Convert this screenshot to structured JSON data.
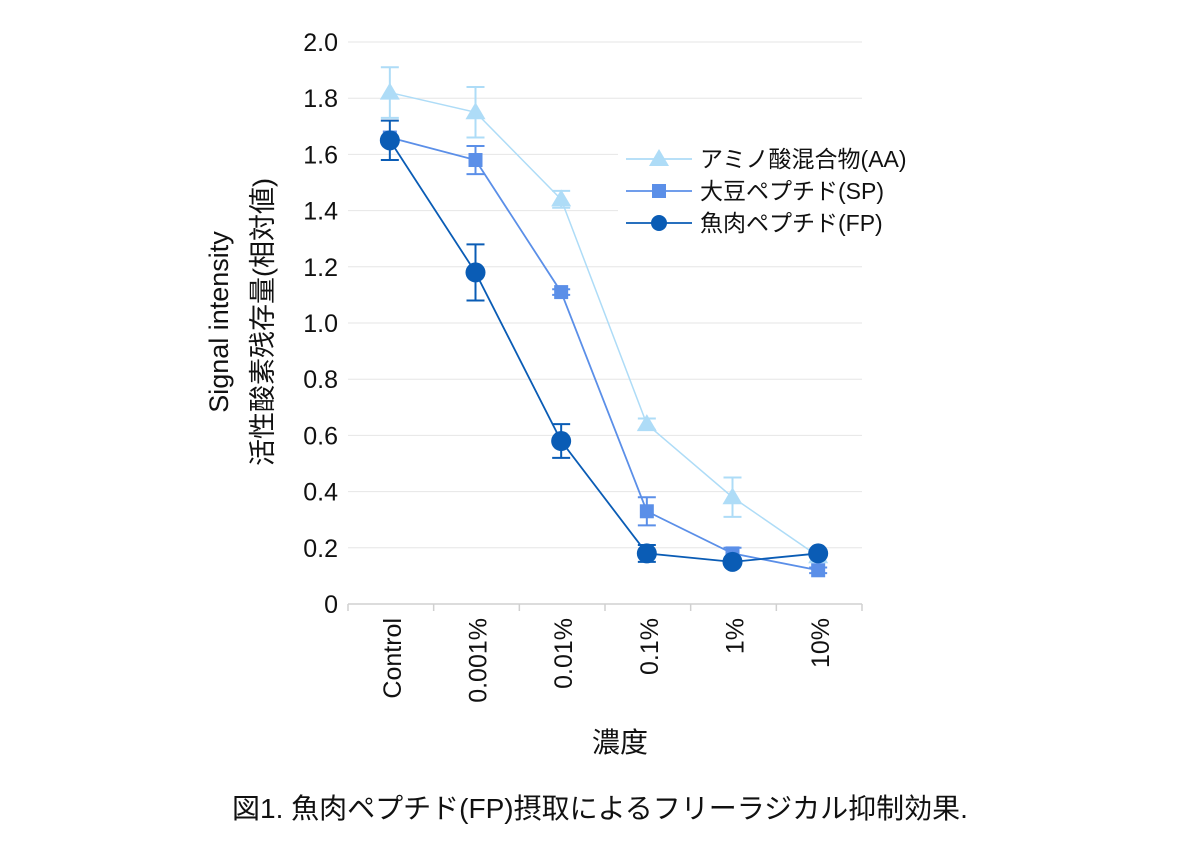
{
  "chart_data": {
    "type": "line",
    "title": "",
    "caption": "図1. 魚肉ペプチド(FP)摂取によるフリーラジカル抑制効果.",
    "xlabel": "濃度",
    "ylabel_line1": "Signal intensity",
    "ylabel_line2": "活性酸素残存量(相対値)",
    "categories": [
      "Control",
      "0.001%",
      "0.01%",
      "0.1%",
      "1%",
      "10%"
    ],
    "ylim": [
      0,
      2.0
    ],
    "yticks": [
      "0",
      "0.2",
      "0.4",
      "0.6",
      "0.8",
      "1.0",
      "1.2",
      "1.4",
      "1.6",
      "1.8",
      "2.0"
    ],
    "grid": true,
    "legend_position": "top-right",
    "series": [
      {
        "name": "アミノ酸混合物(AA)",
        "marker": "triangle",
        "color": "#aedcf7",
        "values": [
          1.82,
          1.75,
          1.44,
          0.64,
          0.38,
          0.17
        ],
        "errors": [
          0.09,
          0.09,
          0.03,
          0.02,
          0.07,
          0.0
        ]
      },
      {
        "name": "大豆ペプチド(SP)",
        "marker": "square",
        "color": "#5b8fe8",
        "values": [
          1.66,
          1.58,
          1.11,
          0.33,
          0.18,
          0.12
        ],
        "errors": [
          0.0,
          0.05,
          0.01,
          0.05,
          0.02,
          0.01
        ]
      },
      {
        "name": "魚肉ペプチド(FP)",
        "marker": "circle",
        "color": "#0a5cb5",
        "values": [
          1.65,
          1.18,
          0.58,
          0.18,
          0.15,
          0.18
        ],
        "errors": [
          0.07,
          0.1,
          0.06,
          0.03,
          0.0,
          0.0
        ]
      }
    ]
  }
}
